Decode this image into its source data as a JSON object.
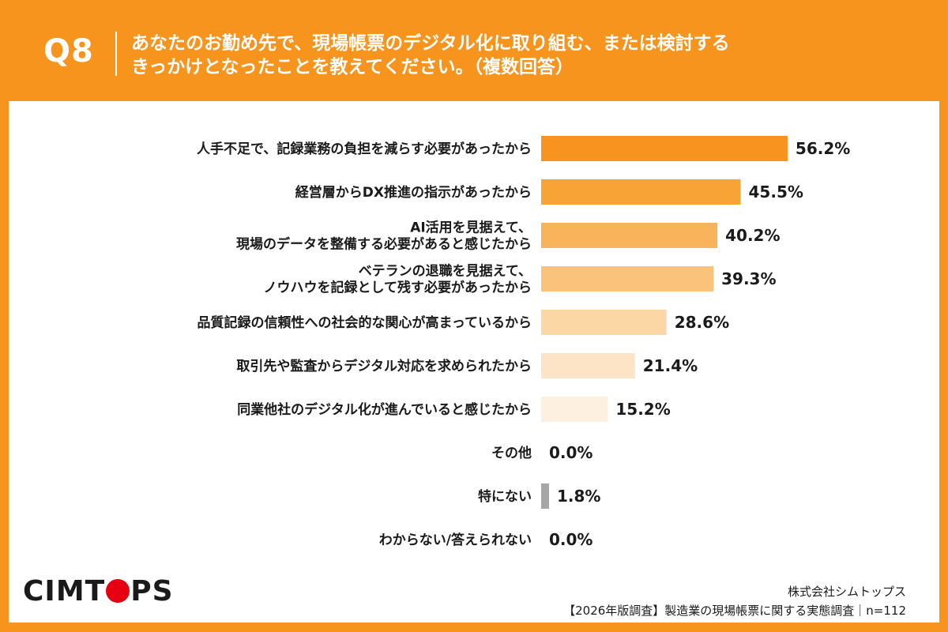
{
  "header": {
    "qnum": "Q8",
    "line1": "あなたのお勤め先で、現場帳票のデジタル化に取り組む、または検討する",
    "line2": "きっかけとなったことを教えてください。（複数回答）"
  },
  "chart_data": {
    "type": "bar",
    "orientation": "horizontal",
    "unit": "%",
    "categories": [
      [
        "人手不足で、記録業務の負担を減らす必要があったから"
      ],
      [
        "経営層からDX推進の指示があったから"
      ],
      [
        "AI活用を見据えて、",
        "現場のデータを整備する必要があると感じたから"
      ],
      [
        "ベテランの退職を見据えて、",
        "ノウハウを記録として残す必要があったから"
      ],
      [
        "品質記録の信頼性への社会的な関心が高まっているから"
      ],
      [
        "取引先や監査からデジタル対応を求められたから"
      ],
      [
        "同業他社のデジタル化が進んでいると感じたから"
      ],
      [
        "その他"
      ],
      [
        "特にない"
      ],
      [
        "わからない/答えられない"
      ]
    ],
    "values": [
      56.2,
      45.5,
      40.2,
      39.3,
      28.6,
      21.4,
      15.2,
      0.0,
      1.8,
      0.0
    ],
    "value_labels": [
      "56.2%",
      "45.5%",
      "40.2%",
      "39.3%",
      "28.6%",
      "21.4%",
      "15.2%",
      "0.0%",
      "1.8%",
      "0.0%"
    ],
    "colors": [
      "#f7931e",
      "#f8a336",
      "#f9b35a",
      "#fac27a",
      "#fbd7a6",
      "#fde4c6",
      "#fdf0e0",
      "#dddddd",
      "#a6a6a6",
      "#dddddd"
    ],
    "xlim": [
      0,
      60
    ]
  },
  "footer": {
    "logo_pre": "CIMT",
    "logo_post": "PS",
    "company": "株式会社シムトップス",
    "source": "【2026年版調査】製造業の現場帳票に関する実態調査｜n=112"
  }
}
